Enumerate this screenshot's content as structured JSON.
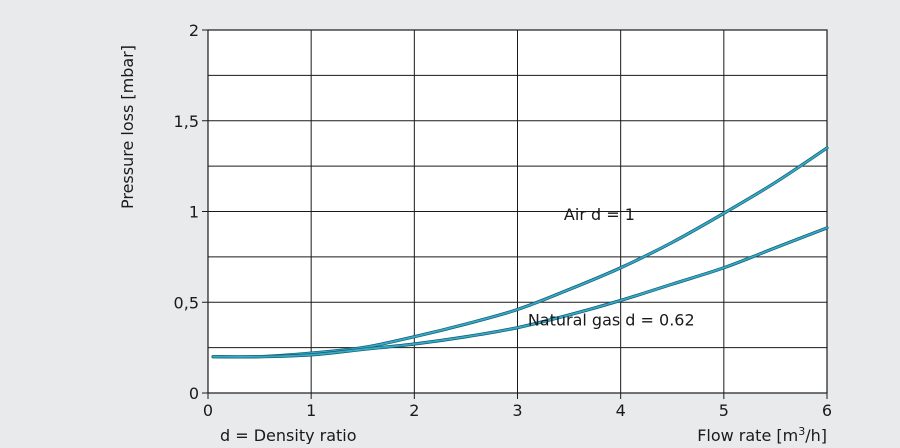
{
  "chart_data": {
    "type": "line",
    "title": "",
    "ylabel": "Pressure loss [mbar]",
    "xlabel": "Flow rate [m3/h]",
    "xlabel_main": "Flow rate [m",
    "xlabel_sup": "3",
    "xlabel_tail": "/h]",
    "note": "d = Density ratio",
    "xlim": [
      0,
      6
    ],
    "ylim": [
      0,
      2
    ],
    "grid": true,
    "x_ticks": [
      0,
      1,
      2,
      3,
      4,
      5,
      6
    ],
    "x_tick_labels": [
      "0",
      "1",
      "2",
      "3",
      "4",
      "5",
      "6"
    ],
    "y_ticks": [
      0,
      0.5,
      1,
      1.5,
      2
    ],
    "y_tick_labels": [
      "0",
      "0,5",
      "1",
      "1,5",
      "2"
    ],
    "series_color": "#3aa8c4",
    "series": [
      {
        "name": "Air d = 1",
        "x": [
          0.05,
          0.5,
          1.0,
          1.5,
          2.0,
          2.5,
          3.0,
          3.5,
          4.0,
          4.5,
          5.0,
          5.5,
          6.0
        ],
        "y": [
          0.2,
          0.2,
          0.22,
          0.25,
          0.31,
          0.38,
          0.46,
          0.57,
          0.69,
          0.83,
          0.99,
          1.16,
          1.35
        ]
      },
      {
        "name": "Natural gas d = 0.62",
        "x": [
          0.05,
          0.5,
          1.0,
          1.5,
          2.0,
          2.5,
          3.0,
          3.5,
          4.0,
          4.5,
          5.0,
          5.5,
          6.0
        ],
        "y": [
          0.2,
          0.2,
          0.21,
          0.24,
          0.27,
          0.31,
          0.36,
          0.43,
          0.51,
          0.6,
          0.69,
          0.8,
          0.91
        ]
      }
    ],
    "annotations": [
      {
        "text": "Air d = 1",
        "x": 3.45,
        "y": 0.98
      },
      {
        "text": "Natural gas d = 0.62",
        "x": 3.1,
        "y": 0.4
      }
    ]
  }
}
